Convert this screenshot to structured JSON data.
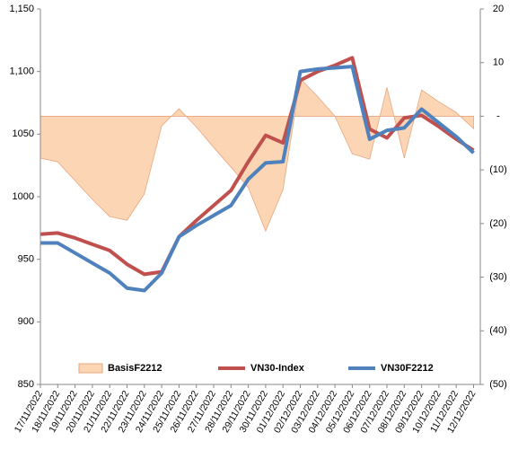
{
  "chart_data": {
    "type": "line",
    "categories": [
      "17/11/2022",
      "18/11/2022",
      "19/11/2022",
      "20/11/2022",
      "21/11/2022",
      "22/11/2022",
      "23/11/2022",
      "24/11/2022",
      "25/11/2022",
      "26/11/2022",
      "27/11/2022",
      "28/11/2022",
      "29/11/2022",
      "30/11/2022",
      "01/12/2022",
      "02/12/2022",
      "03/12/2022",
      "04/12/2022",
      "05/12/2022",
      "06/12/2022",
      "07/12/2022",
      "08/12/2022",
      "09/12/2022",
      "10/12/2022",
      "11/12/2022",
      "12/12/2022"
    ],
    "series": [
      {
        "name": "BasisF2212",
        "color": "#fcd5b4",
        "axis": "y2",
        "kind": "area",
        "values": [
          -7.8,
          -8.5,
          -12,
          -15.5,
          -18.7,
          -19.4,
          -14.5,
          -1.8,
          1.4,
          -2,
          -5.8,
          -9.5,
          -13.3,
          -21.4,
          -13.7,
          7,
          3.7,
          0,
          -7,
          -8,
          5.4,
          -7.8,
          4.9,
          2.7,
          0.7,
          -2.3
        ]
      },
      {
        "name": "VN30-Index",
        "color": "#c0504d",
        "values": [
          970,
          971,
          967,
          962,
          957,
          946,
          938,
          940,
          968,
          981,
          993,
          1005,
          1028,
          1049,
          1043,
          1093,
          1100,
          1105,
          1111,
          1054,
          1047,
          1063,
          1065,
          1056,
          1046,
          1037
        ]
      },
      {
        "name": "VN30F2212",
        "color": "#4f81bd",
        "values": [
          963,
          963,
          955,
          947,
          939,
          927,
          925,
          939,
          968,
          977,
          985,
          993,
          1014,
          1027,
          1028,
          1100,
          1102,
          1103,
          1104,
          1046,
          1053,
          1055,
          1070,
          1059,
          1048,
          1035
        ]
      }
    ],
    "ylim": [
      850,
      1150
    ],
    "yticks": [
      850,
      900,
      950,
      1000,
      1050,
      {
        "value": 1100,
        "label": "1,100"
      },
      {
        "value": 1150,
        "label": "1,150"
      }
    ],
    "y2lim": [
      -50,
      20
    ],
    "y2ticks": [
      {
        "value": -50,
        "label": "(50)"
      },
      {
        "value": -40,
        "label": "(40)"
      },
      {
        "value": -30,
        "label": "(30)"
      },
      {
        "value": -20,
        "label": "(20)"
      },
      {
        "value": -10,
        "label": "(10)"
      },
      {
        "value": 0,
        "label": "-"
      },
      10,
      20
    ]
  }
}
